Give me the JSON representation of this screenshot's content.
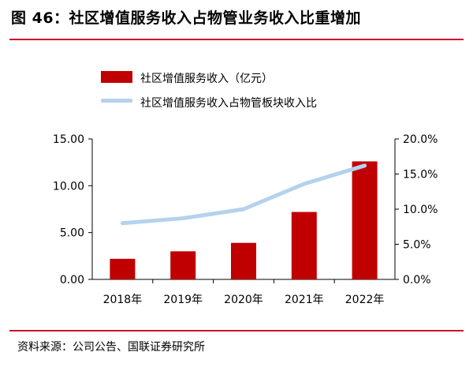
{
  "title": "图 46：社区增值服务收入占物管业务收入比重增加",
  "source": "资料来源：公司公告、国联证券研究所",
  "colors": {
    "bar": "#c00000",
    "line": "#b4d2ec",
    "rule": "#c8102e"
  },
  "chart_data": {
    "type": "bar",
    "categories": [
      "2018年",
      "2019年",
      "2020年",
      "2021年",
      "2022年"
    ],
    "series": [
      {
        "name": "社区增值服务收入（亿元）",
        "type": "bar",
        "axis": "left",
        "values": [
          2.2,
          3.0,
          3.9,
          7.2,
          12.6
        ]
      },
      {
        "name": "社区增值服务收入占物管板块收入比",
        "type": "line",
        "axis": "right",
        "values": [
          8.0,
          8.7,
          10.0,
          13.6,
          16.2
        ]
      }
    ],
    "left_axis": {
      "ylim": [
        0,
        15
      ],
      "ticks": [
        "0.00",
        "5.00",
        "10.00",
        "15.00"
      ]
    },
    "right_axis": {
      "ylim": [
        0,
        20
      ],
      "ticks": [
        "0.0%",
        "5.0%",
        "10.0%",
        "15.0%",
        "20.0%"
      ]
    },
    "grid": false,
    "legend": "top-left"
  }
}
